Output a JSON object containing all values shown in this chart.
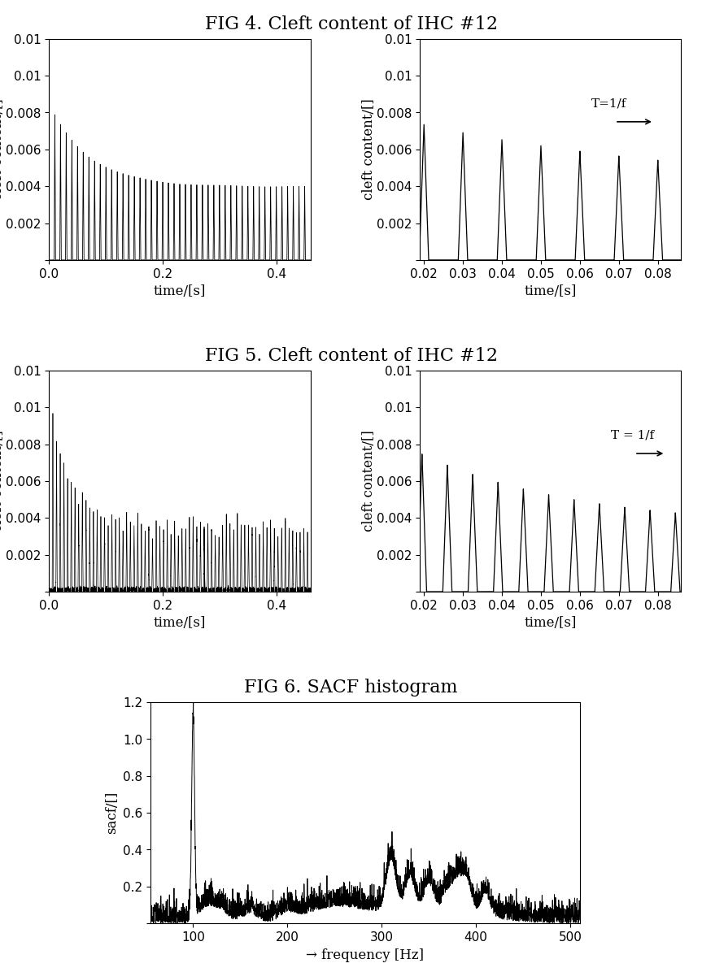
{
  "fig4_title": "FIG 4. Cleft content of IHC #12",
  "fig5_title": "FIG 5. Cleft content of IHC #12",
  "fig6_title": "FIG 6. SACF histogram",
  "ylabel_cleft": "cleft content/[]",
  "xlabel_time": "time/[s]",
  "xlabel_freq": "→ frequency [Hz]",
  "ylabel_sacf": "sacf/[]",
  "xlim_long": [
    0,
    0.46
  ],
  "xticks_long": [
    0,
    0.2,
    0.4
  ],
  "xlim_zoom4": [
    0.019,
    0.086
  ],
  "xticks_zoom": [
    0.02,
    0.03,
    0.04,
    0.05,
    0.06,
    0.07,
    0.08
  ],
  "ylim_cleft": [
    0,
    0.012
  ],
  "yticks_cleft": [
    0,
    0.002,
    0.004,
    0.006,
    0.008,
    0.01,
    0.012
  ],
  "xlim_sacf": [
    55,
    510
  ],
  "xticks_sacf": [
    100,
    200,
    300,
    400,
    500
  ],
  "ylim_sacf": [
    0,
    1.2
  ],
  "yticks_sacf": [
    0,
    0.2,
    0.4,
    0.6,
    0.8,
    1.0,
    1.2
  ],
  "line_color": "#000000",
  "bg_color": "#ffffff",
  "title_fontsize": 16,
  "label_fontsize": 12,
  "tick_fontsize": 11,
  "annot_fontsize": 11,
  "fig4_period": 0.01,
  "fig5_period": 0.0065
}
